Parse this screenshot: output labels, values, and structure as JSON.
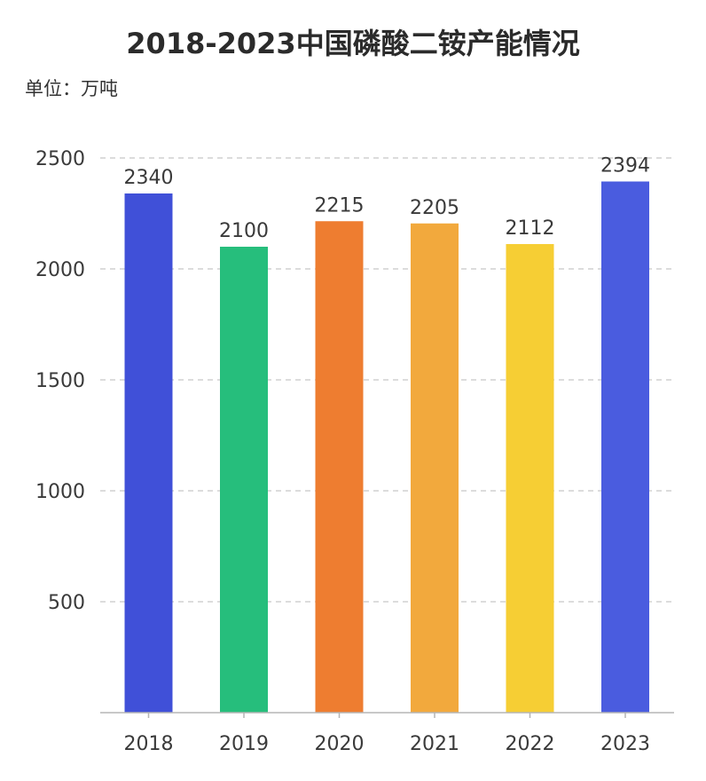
{
  "title": "2018-2023中国磷酸二铵产能情况",
  "unit_label": "单位：万吨",
  "chart_data": {
    "type": "bar",
    "title": "2018-2023中国磷酸二铵产能情况",
    "xlabel": "",
    "ylabel": "",
    "categories": [
      "2018",
      "2019",
      "2020",
      "2021",
      "2022",
      "2023"
    ],
    "values": [
      2340,
      2100,
      2215,
      2205,
      2112,
      2394
    ],
    "colors": [
      "#4050D8",
      "#26BE7C",
      "#EE7D30",
      "#F2A93D",
      "#F6CE34",
      "#4A5CDF"
    ],
    "ylim": [
      0,
      2500
    ],
    "yticks": [
      500,
      1000,
      1500,
      2000,
      2500
    ],
    "grid": true,
    "legend": "none"
  }
}
